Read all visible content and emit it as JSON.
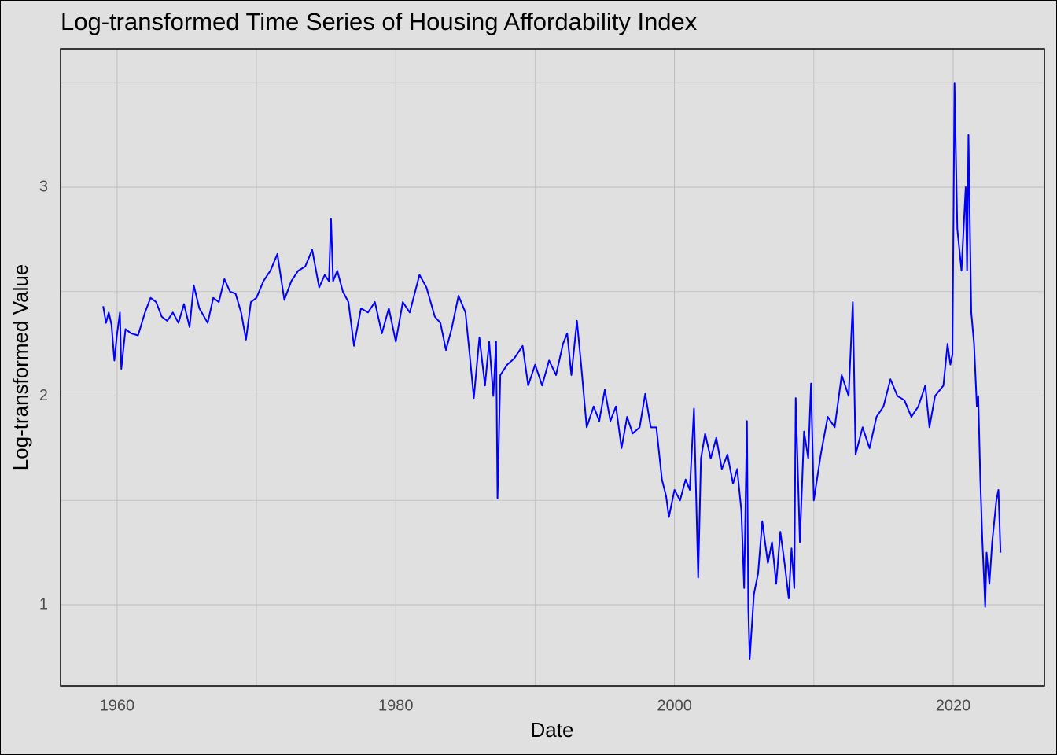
{
  "chart_data": {
    "type": "line",
    "title": "Log-transformed Time Series of Housing Affordability Index",
    "x_label": "Date",
    "y_label": "Log-transformed Value",
    "color": "#0000ff",
    "grid": true,
    "xlim": [
      1955.94,
      2026.55
    ],
    "xticks": [
      1960,
      1980,
      2000,
      2020
    ],
    "xminor": [
      1970,
      1990,
      2010
    ],
    "ylim": [
      0.612,
      3.663
    ],
    "yticks": [
      1,
      2,
      3
    ],
    "yminor": [
      1.5,
      2.5,
      3.5
    ],
    "x": [
      1959.0,
      1959.2,
      1959.4,
      1959.6,
      1959.8,
      1960.0,
      1960.2,
      1960.3,
      1960.6,
      1961.0,
      1961.5,
      1962.0,
      1962.4,
      1962.8,
      1963.2,
      1963.6,
      1964.0,
      1964.4,
      1964.8,
      1965.2,
      1965.5,
      1965.9,
      1966.5,
      1966.9,
      1967.3,
      1967.7,
      1968.1,
      1968.5,
      1968.9,
      1969.25,
      1969.6,
      1970.0,
      1970.5,
      1971.0,
      1971.5,
      1972.0,
      1972.5,
      1973.0,
      1973.5,
      1974.0,
      1974.5,
      1974.9,
      1975.2,
      1975.35,
      1975.5,
      1975.8,
      1976.2,
      1976.6,
      1977.0,
      1977.5,
      1978.0,
      1978.5,
      1979.0,
      1979.5,
      1980.0,
      1980.5,
      1981.0,
      1981.7,
      1982.2,
      1982.8,
      1983.2,
      1983.6,
      1984.0,
      1984.5,
      1985.0,
      1985.3,
      1985.6,
      1986.0,
      1986.4,
      1986.7,
      1987.0,
      1987.2,
      1987.3,
      1987.5,
      1988.0,
      1988.5,
      1989.1,
      1989.5,
      1990.0,
      1990.5,
      1991.0,
      1991.5,
      1992.0,
      1992.3,
      1992.6,
      1993.0,
      1993.3,
      1993.7,
      1994.2,
      1994.6,
      1995.0,
      1995.4,
      1995.8,
      1996.2,
      1996.6,
      1997.0,
      1997.5,
      1997.9,
      1998.3,
      1998.7,
      1999.1,
      1999.4,
      1999.6,
      2000.0,
      2000.4,
      2000.8,
      2001.1,
      2001.4,
      2001.7,
      2001.9,
      2002.2,
      2002.6,
      2003.0,
      2003.4,
      2003.8,
      2004.2,
      2004.5,
      2004.8,
      2005.0,
      2005.2,
      2005.3,
      2005.4,
      2005.7,
      2006.0,
      2006.3,
      2006.7,
      2007.0,
      2007.3,
      2007.6,
      2007.9,
      2008.2,
      2008.4,
      2008.6,
      2008.7,
      2009.0,
      2009.3,
      2009.6,
      2009.8,
      2010.0,
      2010.5,
      2011.0,
      2011.5,
      2012.0,
      2012.5,
      2012.8,
      2013.0,
      2013.5,
      2014.0,
      2014.5,
      2015.0,
      2015.5,
      2016.0,
      2016.5,
      2017.0,
      2017.5,
      2018.0,
      2018.3,
      2018.7,
      2019.3,
      2019.6,
      2019.8,
      2019.95,
      2020.1,
      2020.3,
      2020.6,
      2020.9,
      2021.0,
      2021.1,
      2021.3,
      2021.5,
      2021.7,
      2021.8,
      2021.95,
      2022.1,
      2022.2,
      2022.3,
      2022.4,
      2022.6,
      2022.8,
      2023.1,
      2023.25,
      2023.4
    ],
    "values": [
      2.43,
      2.35,
      2.4,
      2.34,
      2.17,
      2.3,
      2.4,
      2.13,
      2.32,
      2.3,
      2.29,
      2.4,
      2.47,
      2.45,
      2.38,
      2.36,
      2.4,
      2.35,
      2.44,
      2.33,
      2.53,
      2.42,
      2.35,
      2.47,
      2.45,
      2.56,
      2.5,
      2.49,
      2.4,
      2.27,
      2.45,
      2.47,
      2.55,
      2.6,
      2.68,
      2.46,
      2.55,
      2.6,
      2.62,
      2.7,
      2.52,
      2.58,
      2.55,
      2.85,
      2.55,
      2.6,
      2.5,
      2.45,
      2.24,
      2.42,
      2.4,
      2.45,
      2.3,
      2.42,
      2.26,
      2.45,
      2.4,
      2.58,
      2.52,
      2.38,
      2.35,
      2.22,
      2.32,
      2.48,
      2.4,
      2.2,
      1.99,
      2.28,
      2.05,
      2.26,
      2.0,
      2.26,
      1.51,
      2.1,
      2.15,
      2.18,
      2.24,
      2.05,
      2.15,
      2.05,
      2.17,
      2.1,
      2.25,
      2.3,
      2.1,
      2.36,
      2.15,
      1.85,
      1.95,
      1.88,
      2.03,
      1.88,
      1.95,
      1.75,
      1.9,
      1.82,
      1.85,
      2.01,
      1.85,
      1.85,
      1.6,
      1.52,
      1.42,
      1.55,
      1.5,
      1.6,
      1.55,
      1.94,
      1.13,
      1.7,
      1.82,
      1.7,
      1.8,
      1.65,
      1.72,
      1.58,
      1.65,
      1.45,
      1.08,
      1.88,
      0.98,
      0.74,
      1.05,
      1.15,
      1.4,
      1.2,
      1.3,
      1.1,
      1.35,
      1.2,
      1.03,
      1.27,
      1.08,
      1.99,
      1.3,
      1.83,
      1.7,
      2.06,
      1.5,
      1.72,
      1.9,
      1.85,
      2.1,
      2.0,
      2.45,
      1.72,
      1.85,
      1.75,
      1.9,
      1.95,
      2.08,
      2.0,
      1.98,
      1.9,
      1.95,
      2.05,
      1.85,
      2.0,
      2.05,
      2.25,
      2.15,
      2.2,
      3.5,
      2.8,
      2.6,
      3.0,
      2.6,
      3.25,
      2.4,
      2.25,
      1.95,
      2.0,
      1.6,
      1.3,
      1.15,
      0.99,
      1.25,
      1.1,
      1.3,
      1.5,
      1.55,
      1.25
    ]
  }
}
